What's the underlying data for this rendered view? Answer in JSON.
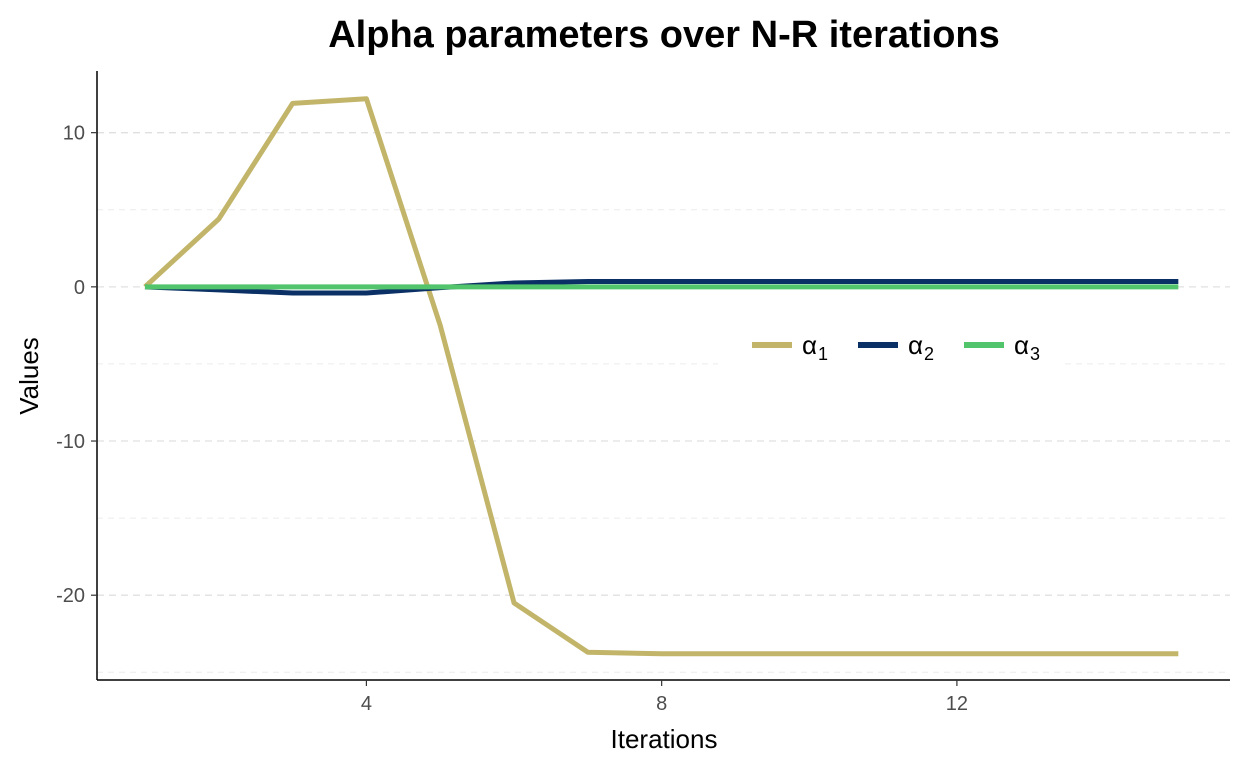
{
  "chart_data": {
    "type": "line",
    "title": "Alpha parameters over N-R iterations",
    "xlabel": "Iterations",
    "ylabel": "Values",
    "x": [
      1,
      2,
      3,
      4,
      5,
      6,
      7,
      8,
      9,
      10,
      11,
      12,
      13,
      14,
      15
    ],
    "xlim": [
      0.35,
      15.7
    ],
    "ylim": [
      -25.5,
      14.0
    ],
    "x_ticks": [
      4,
      8,
      12
    ],
    "y_ticks": [
      -20,
      -10,
      0,
      10
    ],
    "grid": "horizontal dashed, major and minor",
    "legend_position": "right, inside plot",
    "series": [
      {
        "symbol": "α",
        "subscript": "1",
        "color": "#C2B56A",
        "values": [
          0,
          4.4,
          11.9,
          12.2,
          -2.5,
          -20.5,
          -23.7,
          -23.8,
          -23.8,
          -23.8,
          -23.8,
          -23.8,
          -23.8,
          -23.8,
          -23.8
        ]
      },
      {
        "symbol": "α",
        "subscript": "2",
        "color": "#0A3065",
        "values": [
          0,
          -0.2,
          -0.4,
          -0.4,
          -0.05,
          0.25,
          0.35,
          0.35,
          0.35,
          0.35,
          0.35,
          0.35,
          0.35,
          0.35,
          0.35
        ]
      },
      {
        "symbol": "α",
        "subscript": "3",
        "color": "#52C46B",
        "values": [
          0,
          0,
          0,
          0,
          0,
          0,
          0,
          0,
          0,
          0,
          0,
          0,
          0,
          0,
          0
        ]
      }
    ]
  }
}
